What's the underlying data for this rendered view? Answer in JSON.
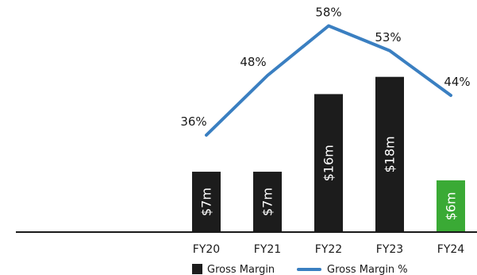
{
  "chart_data": {
    "type": "bar",
    "categories": [
      "FY20",
      "FY21",
      "FY22",
      "FY23",
      "FY24"
    ],
    "series": [
      {
        "name": "Gross Margin",
        "type": "bar",
        "values": [
          7,
          7,
          16,
          18,
          6
        ],
        "labels": [
          "$7m",
          "$7m",
          "$16m",
          "$18m",
          "$6m"
        ],
        "colors": [
          "#1c1c1c",
          "#1c1c1c",
          "#1c1c1c",
          "#1c1c1c",
          "#3aaa35"
        ]
      },
      {
        "name": "Gross Margin %",
        "type": "line",
        "values": [
          36,
          48,
          58,
          53,
          44
        ],
        "labels": [
          "36%",
          "48%",
          "58%",
          "53%",
          "44%"
        ],
        "color": "#3a7fc1"
      }
    ],
    "legend": {
      "position": "bottom",
      "items": [
        "Gross Margin",
        "Gross Margin %"
      ]
    },
    "title": "",
    "xlabel": "",
    "ylabel": "",
    "grid": false
  }
}
